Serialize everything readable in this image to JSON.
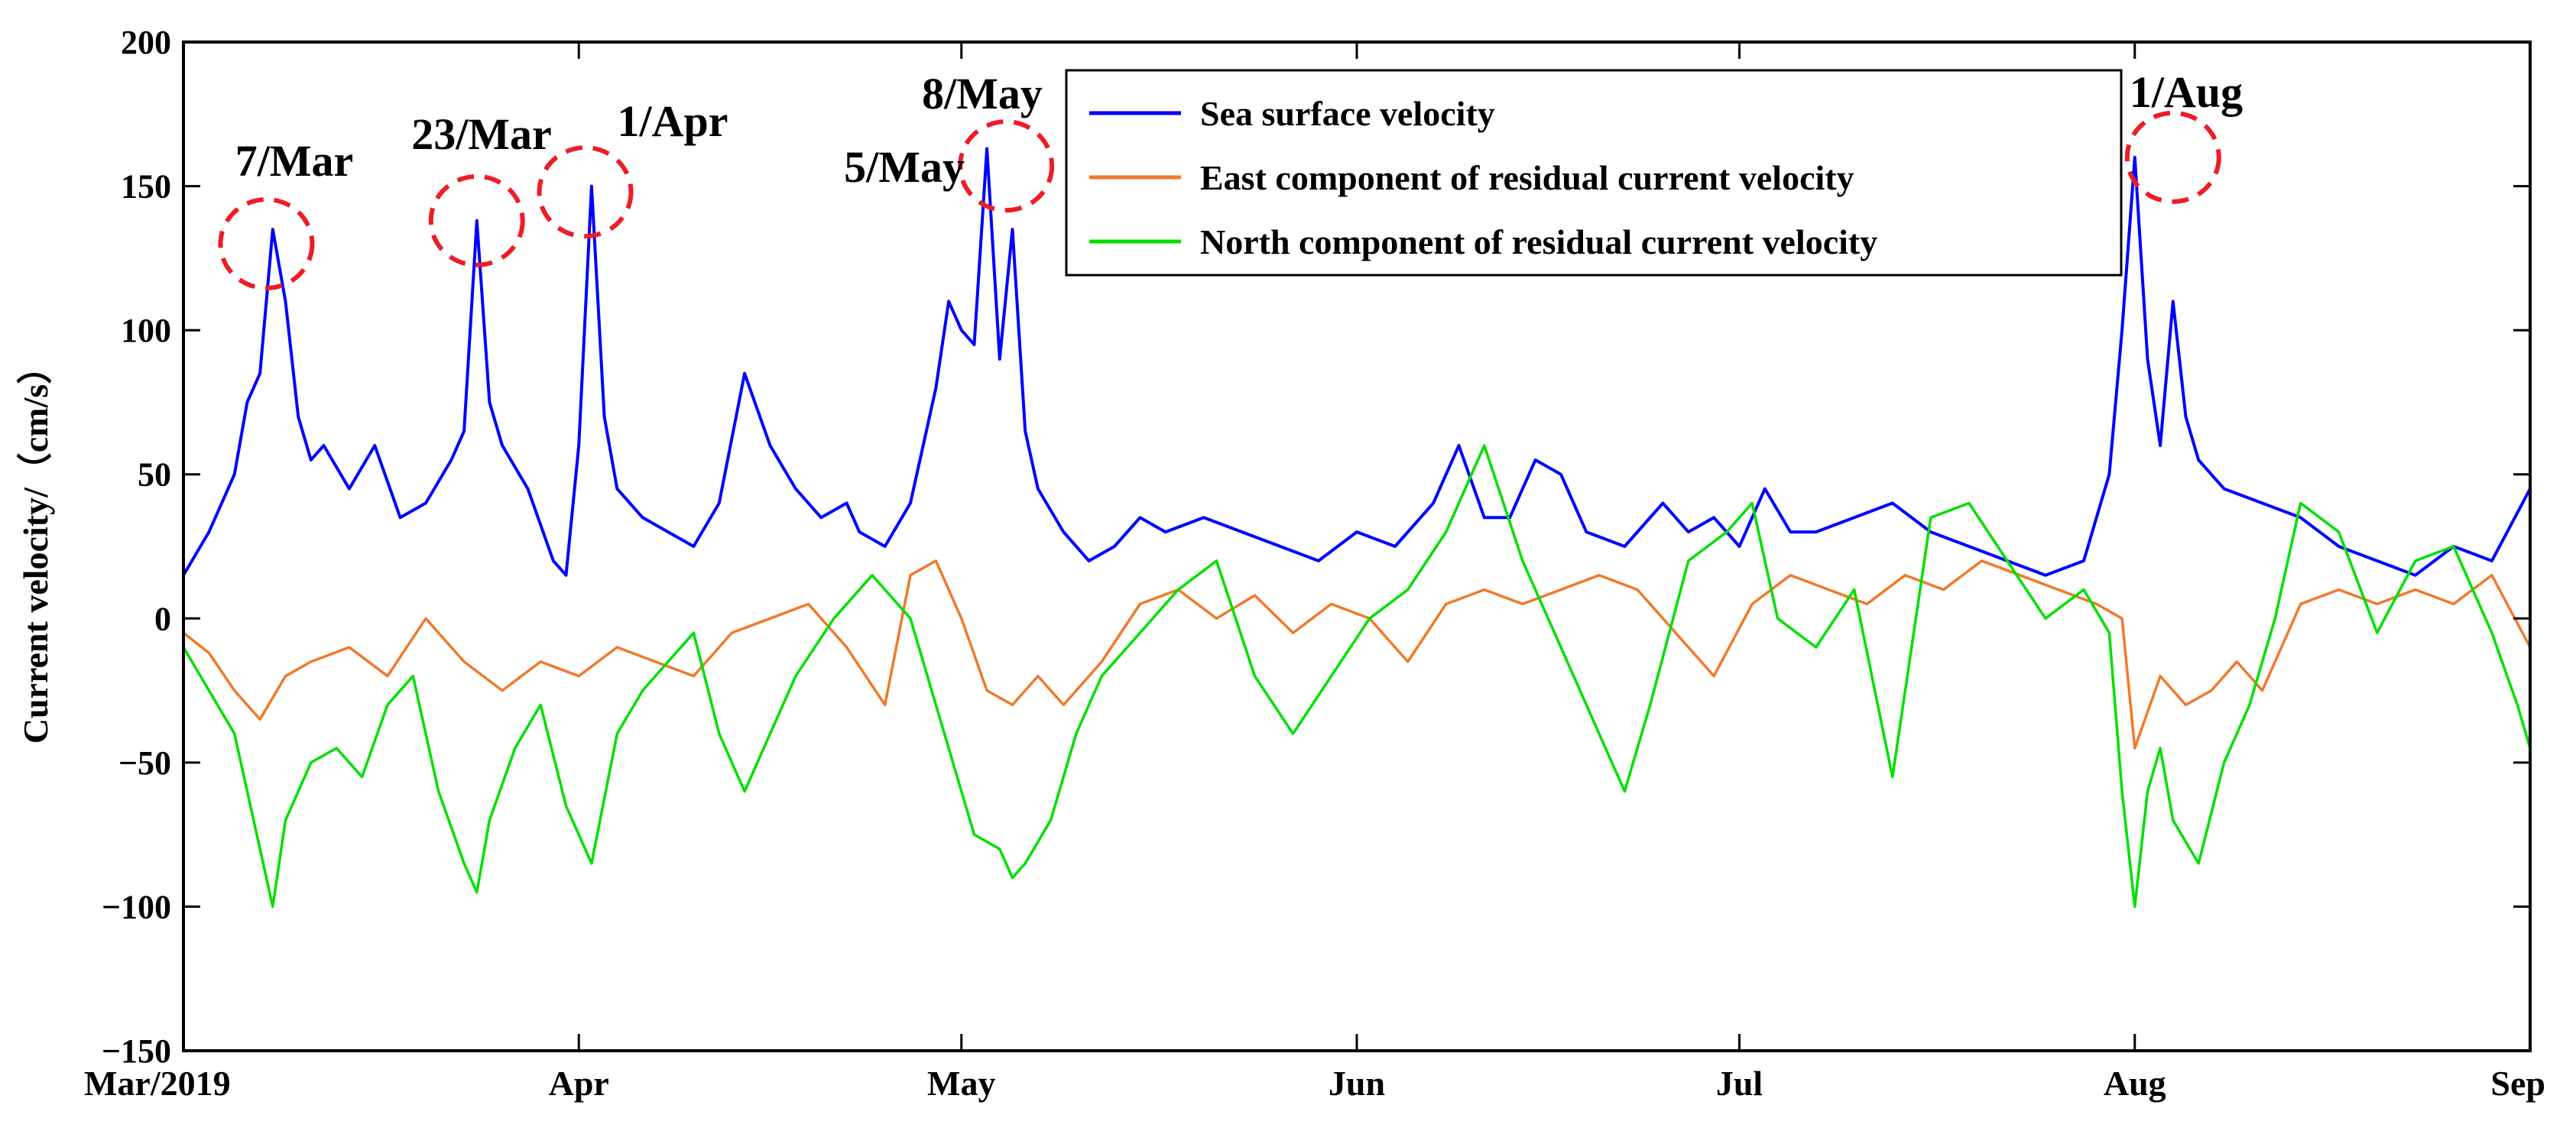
{
  "chart_data": {
    "type": "line",
    "title": "",
    "xlabel": "",
    "ylabel": "Current velocity/（cm/s）",
    "xlim": [
      0,
      184
    ],
    "ylim": [
      -150,
      200
    ],
    "y_ticks": [
      -150,
      -100,
      -50,
      0,
      50,
      100,
      150,
      200
    ],
    "x_ticks": [
      {
        "day": 0,
        "label": "Mar/2019"
      },
      {
        "day": 31,
        "label": "Apr"
      },
      {
        "day": 61,
        "label": "May"
      },
      {
        "day": 92,
        "label": "Jun"
      },
      {
        "day": 122,
        "label": "Jul"
      },
      {
        "day": 153,
        "label": "Aug"
      },
      {
        "day": 184,
        "label": "Sep"
      }
    ],
    "grid": false,
    "legend_position": "top-center",
    "series": [
      {
        "name": "Sea surface velocity",
        "color": "#0000FF",
        "x": [
          0,
          2,
          4,
          5,
          6,
          7,
          8,
          9,
          10,
          11,
          13,
          15,
          17,
          19,
          21,
          22,
          23,
          24,
          25,
          27,
          29,
          30,
          31,
          32,
          33,
          34,
          36,
          38,
          40,
          42,
          44,
          46,
          48,
          50,
          52,
          53,
          55,
          57,
          59,
          60,
          61,
          62,
          63,
          64,
          65,
          66,
          67,
          69,
          71,
          73,
          75,
          77,
          80,
          83,
          86,
          89,
          92,
          95,
          98,
          100,
          102,
          104,
          106,
          108,
          110,
          113,
          116,
          118,
          120,
          122,
          124,
          126,
          128,
          131,
          134,
          137,
          140,
          143,
          146,
          149,
          151,
          152,
          153,
          154,
          155,
          156,
          157,
          158,
          160,
          163,
          166,
          169,
          172,
          175,
          178,
          181,
          184
        ],
        "values": [
          15,
          30,
          50,
          75,
          85,
          135,
          110,
          70,
          55,
          60,
          45,
          60,
          35,
          40,
          55,
          65,
          138,
          75,
          60,
          45,
          20,
          15,
          60,
          150,
          70,
          45,
          35,
          30,
          25,
          40,
          85,
          60,
          45,
          35,
          40,
          30,
          25,
          40,
          80,
          110,
          100,
          95,
          163,
          90,
          135,
          65,
          45,
          30,
          20,
          25,
          35,
          30,
          35,
          30,
          25,
          20,
          30,
          25,
          40,
          60,
          35,
          35,
          55,
          50,
          30,
          25,
          40,
          30,
          35,
          25,
          45,
          30,
          30,
          35,
          40,
          30,
          25,
          20,
          15,
          20,
          50,
          100,
          160,
          90,
          60,
          110,
          70,
          55,
          45,
          40,
          35,
          25,
          20,
          15,
          25,
          20,
          45
        ]
      },
      {
        "name": "East component of residual current velocity",
        "color": "#F07A2C",
        "x": [
          0,
          2,
          4,
          6,
          8,
          10,
          13,
          16,
          19,
          22,
          25,
          28,
          31,
          34,
          37,
          40,
          43,
          46,
          49,
          52,
          55,
          57,
          59,
          61,
          63,
          65,
          67,
          69,
          72,
          75,
          78,
          81,
          84,
          87,
          90,
          93,
          96,
          99,
          102,
          105,
          108,
          111,
          114,
          117,
          120,
          123,
          126,
          129,
          132,
          135,
          138,
          141,
          144,
          147,
          150,
          152,
          153,
          155,
          157,
          159,
          161,
          163,
          166,
          169,
          172,
          175,
          178,
          181,
          184
        ],
        "values": [
          -5,
          -12,
          -25,
          -35,
          -20,
          -15,
          -10,
          -20,
          0,
          -15,
          -25,
          -15,
          -20,
          -10,
          -15,
          -20,
          -5,
          0,
          5,
          -10,
          -30,
          15,
          20,
          0,
          -25,
          -30,
          -20,
          -30,
          -15,
          5,
          10,
          0,
          8,
          -5,
          5,
          0,
          -15,
          5,
          10,
          5,
          10,
          15,
          10,
          -5,
          -20,
          5,
          15,
          10,
          5,
          15,
          10,
          20,
          15,
          10,
          5,
          0,
          -45,
          -20,
          -30,
          -25,
          -15,
          -25,
          5,
          10,
          5,
          10,
          5,
          15,
          -10
        ]
      },
      {
        "name": "North component of residual current velocity",
        "color": "#00E000",
        "x": [
          0,
          2,
          4,
          6,
          7,
          8,
          10,
          12,
          14,
          16,
          18,
          20,
          22,
          23,
          24,
          26,
          28,
          30,
          32,
          34,
          36,
          38,
          40,
          42,
          44,
          46,
          48,
          51,
          54,
          57,
          60,
          62,
          64,
          65,
          66,
          68,
          70,
          72,
          75,
          78,
          81,
          84,
          87,
          90,
          93,
          96,
          99,
          102,
          105,
          108,
          111,
          113,
          115,
          118,
          121,
          123,
          125,
          128,
          131,
          134,
          137,
          140,
          143,
          146,
          149,
          151,
          152,
          153,
          154,
          155,
          156,
          158,
          160,
          162,
          164,
          166,
          169,
          172,
          175,
          178,
          181,
          183,
          184
        ],
        "values": [
          -10,
          -25,
          -40,
          -80,
          -100,
          -70,
          -50,
          -45,
          -55,
          -30,
          -20,
          -60,
          -85,
          -95,
          -70,
          -45,
          -30,
          -65,
          -85,
          -40,
          -25,
          -15,
          -5,
          -40,
          -60,
          -40,
          -20,
          0,
          15,
          0,
          -45,
          -75,
          -80,
          -90,
          -85,
          -70,
          -40,
          -20,
          -5,
          10,
          20,
          -20,
          -40,
          -20,
          0,
          10,
          30,
          60,
          20,
          -10,
          -40,
          -60,
          -30,
          20,
          30,
          40,
          0,
          -10,
          10,
          -55,
          35,
          40,
          20,
          0,
          10,
          -5,
          -60,
          -100,
          -60,
          -45,
          -70,
          -85,
          -50,
          -30,
          0,
          40,
          30,
          -5,
          20,
          25,
          -5,
          -30,
          -45
        ]
      }
    ],
    "annotations": [
      {
        "label": "7/Mar",
        "day": 6.5,
        "value": 130
      },
      {
        "label": "23/Mar",
        "day": 23,
        "value": 138
      },
      {
        "label": "1/Apr",
        "day": 31.5,
        "value": 148
      },
      {
        "label": "5/May",
        "day": 64.5,
        "value": 157
      },
      {
        "label": "8/May",
        "day": 64.5,
        "value": 160
      },
      {
        "label": "1/Aug",
        "day": 156,
        "value": 160
      }
    ]
  }
}
